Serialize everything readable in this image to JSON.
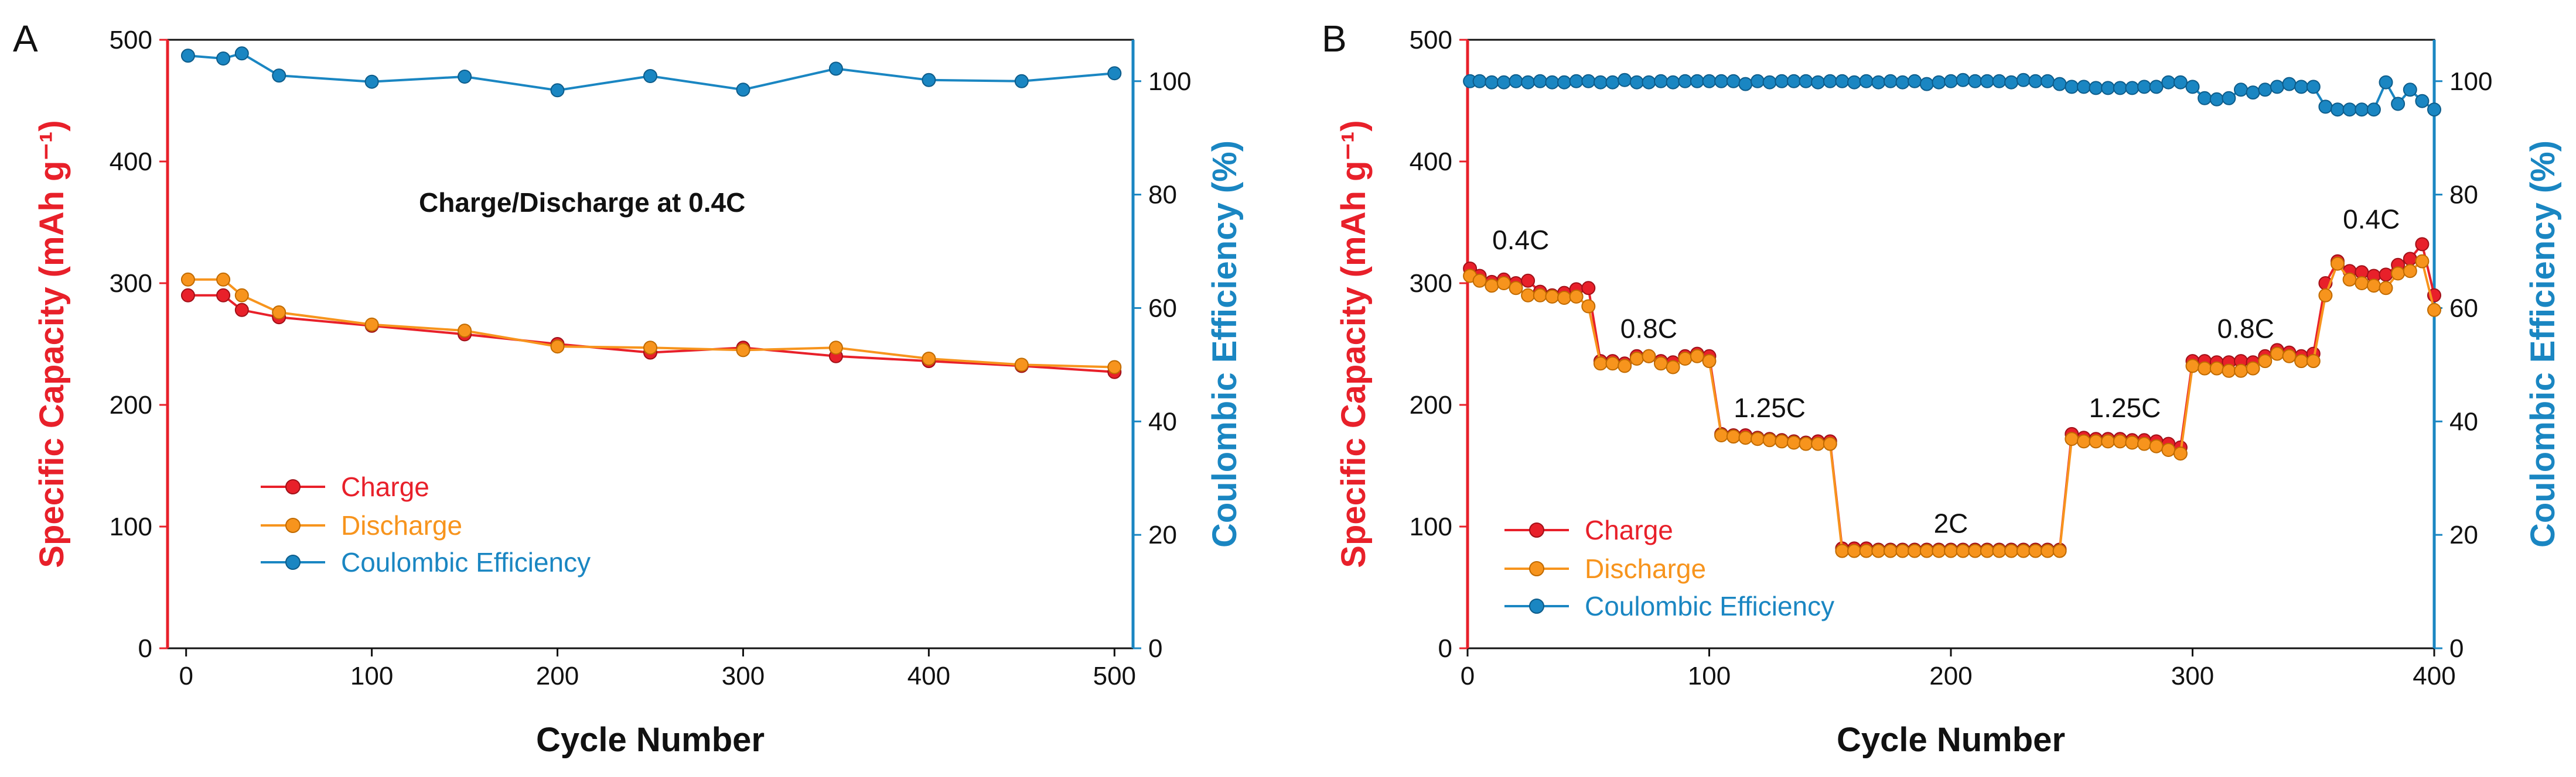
{
  "colors": {
    "charge": "#e8202a",
    "discharge": "#f7941d",
    "ce": "#1a86c2",
    "axis_left": "#e8202a",
    "axis_right": "#1a86c2",
    "axis_black": "#111111"
  },
  "chart_data": [
    {
      "panel": "A",
      "type": "line",
      "title": "",
      "annotation": "Charge/Discharge at 0.4C",
      "xlabel": "Cycle Number",
      "ylabel_left": "Specific Capacity (mAh g⁻¹)",
      "ylabel_right": "Coulombic Efficiency (%)",
      "xlim": [
        -10,
        510
      ],
      "ylim_left": [
        0,
        500
      ],
      "ylim_right": [
        0,
        107.3
      ],
      "xticks": [
        0,
        100,
        200,
        300,
        400,
        500
      ],
      "yticks_left": [
        0,
        100,
        200,
        300,
        400,
        500
      ],
      "yticks_right": [
        0,
        20,
        40,
        60,
        80,
        100
      ],
      "legend": [
        "Charge",
        "Discharge",
        "Coulombic Efficiency"
      ],
      "legend_position": "lower-left",
      "series": [
        {
          "name": "Charge",
          "axis": "left",
          "x": [
            1,
            20,
            30,
            50,
            100,
            150,
            200,
            250,
            300,
            350,
            400,
            450,
            500
          ],
          "values": [
            290,
            290,
            278,
            272,
            265,
            258,
            250,
            243,
            247,
            240,
            236,
            232,
            227
          ]
        },
        {
          "name": "Discharge",
          "axis": "left",
          "x": [
            1,
            20,
            30,
            50,
            100,
            150,
            200,
            250,
            300,
            350,
            400,
            450,
            500
          ],
          "values": [
            303,
            303,
            290,
            276,
            266,
            261,
            248,
            247,
            245,
            247,
            238,
            233,
            231
          ]
        },
        {
          "name": "Coulombic Efficiency",
          "axis": "right",
          "x": [
            1,
            20,
            30,
            50,
            100,
            150,
            200,
            250,
            300,
            350,
            400,
            450,
            500
          ],
          "values": [
            104.5,
            104.0,
            104.9,
            101.0,
            99.9,
            100.8,
            98.4,
            100.9,
            98.5,
            102.2,
            100.2,
            100.0,
            101.4
          ]
        }
      ]
    },
    {
      "panel": "B",
      "type": "line",
      "title": "",
      "xlabel": "Cycle Number",
      "ylabel_left": "Specific Capacity (mAh g⁻¹)",
      "ylabel_right": "Coulombic Efficiency (%)",
      "xlim": [
        0,
        400
      ],
      "ylim_left": [
        0,
        500
      ],
      "ylim_right": [
        0,
        107.3
      ],
      "xticks": [
        0,
        100,
        200,
        300,
        400
      ],
      "yticks_left": [
        0,
        100,
        200,
        300,
        400,
        500
      ],
      "yticks_right": [
        0,
        20,
        40,
        60,
        80,
        100
      ],
      "legend": [
        "Charge",
        "Discharge",
        "Coulombic Efficiency"
      ],
      "legend_position": "lower-left",
      "rate_labels": [
        {
          "text": "0.4C",
          "x": 22,
          "y": 328
        },
        {
          "text": "0.8C",
          "x": 75,
          "y": 255
        },
        {
          "text": "1.25C",
          "x": 125,
          "y": 190
        },
        {
          "text": "2C",
          "x": 200,
          "y": 95
        },
        {
          "text": "1.25C",
          "x": 272,
          "y": 190
        },
        {
          "text": "0.8C",
          "x": 322,
          "y": 255
        },
        {
          "text": "0.4C",
          "x": 374,
          "y": 345
        }
      ],
      "series": [
        {
          "name": "Charge",
          "axis": "left",
          "x": [
            1,
            5,
            10,
            15,
            20,
            25,
            30,
            35,
            40,
            45,
            50,
            55,
            60,
            65,
            70,
            75,
            80,
            85,
            90,
            95,
            100,
            105,
            110,
            115,
            120,
            125,
            130,
            135,
            140,
            145,
            150,
            155,
            160,
            165,
            170,
            175,
            180,
            185,
            190,
            195,
            200,
            205,
            210,
            215,
            220,
            225,
            230,
            235,
            240,
            245,
            250,
            255,
            260,
            265,
            270,
            275,
            280,
            285,
            290,
            295,
            300,
            305,
            310,
            315,
            320,
            325,
            330,
            335,
            340,
            345,
            350,
            355,
            360,
            365,
            370,
            375,
            380,
            385,
            390,
            395,
            400
          ],
          "values": [
            312,
            306,
            301,
            303,
            300,
            302,
            293,
            290,
            292,
            295,
            296,
            236,
            236,
            234,
            240,
            240,
            236,
            235,
            240,
            242,
            240,
            176,
            175,
            175,
            173,
            172,
            171,
            170,
            169,
            170,
            170,
            82,
            82,
            82,
            81,
            81,
            81,
            81,
            81,
            81,
            81,
            81,
            81,
            81,
            81,
            81,
            81,
            81,
            81,
            81,
            176,
            173,
            172,
            172,
            172,
            171,
            171,
            170,
            168,
            165,
            236,
            236,
            235,
            235,
            236,
            235,
            240,
            245,
            243,
            240,
            242,
            300,
            318,
            310,
            309,
            306,
            307,
            315,
            320,
            332,
            290
          ]
        },
        {
          "name": "Discharge",
          "axis": "left",
          "x": [
            1,
            5,
            10,
            15,
            20,
            25,
            30,
            35,
            40,
            45,
            50,
            55,
            60,
            65,
            70,
            75,
            80,
            85,
            90,
            95,
            100,
            105,
            110,
            115,
            120,
            125,
            130,
            135,
            140,
            145,
            150,
            155,
            160,
            165,
            170,
            175,
            180,
            185,
            190,
            195,
            200,
            205,
            210,
            215,
            220,
            225,
            230,
            235,
            240,
            245,
            250,
            255,
            260,
            265,
            270,
            275,
            280,
            285,
            290,
            295,
            300,
            305,
            310,
            315,
            320,
            325,
            330,
            335,
            340,
            345,
            350,
            355,
            360,
            365,
            370,
            375,
            380,
            385,
            390,
            395,
            400
          ],
          "values": [
            306,
            302,
            298,
            300,
            296,
            290,
            290,
            289,
            288,
            289,
            281,
            234,
            234,
            232,
            238,
            240,
            234,
            231,
            238,
            240,
            236,
            175,
            174,
            173,
            172,
            171,
            170,
            169,
            168,
            168,
            168,
            80,
            80,
            80,
            80,
            80,
            80,
            80,
            80,
            80,
            80,
            80,
            80,
            80,
            80,
            80,
            80,
            80,
            80,
            80,
            172,
            170,
            170,
            170,
            170,
            169,
            168,
            166,
            163,
            160,
            232,
            230,
            230,
            228,
            228,
            230,
            236,
            242,
            240,
            236,
            236,
            290,
            316,
            303,
            300,
            298,
            296,
            308,
            310,
            318,
            278
          ]
        },
        {
          "name": "Coulombic Efficiency",
          "axis": "right",
          "x": [
            1,
            5,
            10,
            15,
            20,
            25,
            30,
            35,
            40,
            45,
            50,
            55,
            60,
            65,
            70,
            75,
            80,
            85,
            90,
            95,
            100,
            105,
            110,
            115,
            120,
            125,
            130,
            135,
            140,
            145,
            150,
            155,
            160,
            165,
            170,
            175,
            180,
            185,
            190,
            195,
            200,
            205,
            210,
            215,
            220,
            225,
            230,
            235,
            240,
            245,
            250,
            255,
            260,
            265,
            270,
            275,
            280,
            285,
            290,
            295,
            300,
            305,
            310,
            315,
            320,
            325,
            330,
            335,
            340,
            345,
            350,
            355,
            360,
            365,
            370,
            375,
            380,
            385,
            390,
            395,
            400
          ],
          "values": [
            100.0,
            100.0,
            99.8,
            99.8,
            100.0,
            99.8,
            100.0,
            99.8,
            99.8,
            100.0,
            100.0,
            99.8,
            99.8,
            100.2,
            99.8,
            99.8,
            100.0,
            99.8,
            100.0,
            100.0,
            100.0,
            100.0,
            100.0,
            99.5,
            100.0,
            99.8,
            100.0,
            100.0,
            100.0,
            99.8,
            100.0,
            100.0,
            99.8,
            100.0,
            99.8,
            100.0,
            99.8,
            100.0,
            99.5,
            99.8,
            100.0,
            100.2,
            100.0,
            100.0,
            100.0,
            99.8,
            100.2,
            100.0,
            100.0,
            99.5,
            99.0,
            99.0,
            98.8,
            98.8,
            98.8,
            98.8,
            99.0,
            99.0,
            99.8,
            99.8,
            99.0,
            97.0,
            96.8,
            97.0,
            98.5,
            98.0,
            98.5,
            99.0,
            99.5,
            99.0,
            99.0,
            95.5,
            95.0,
            95.0,
            95.0,
            95.0,
            99.8,
            96.0,
            98.5,
            96.5,
            95.0
          ]
        }
      ]
    }
  ]
}
